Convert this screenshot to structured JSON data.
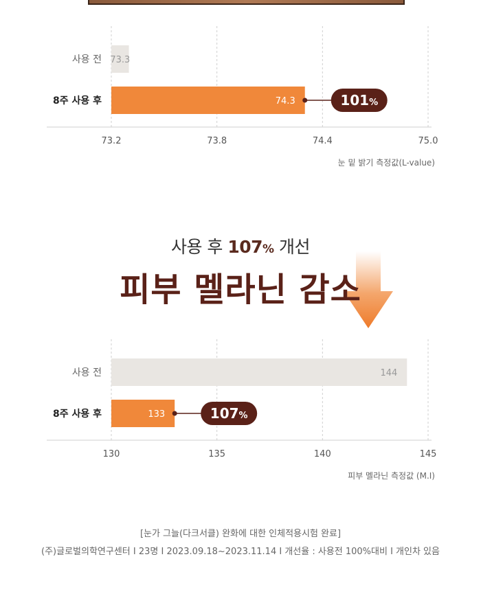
{
  "chart_data": [
    {
      "type": "bar",
      "orientation": "horizontal",
      "categories": [
        "사용 전",
        "8주 사용 후"
      ],
      "values": [
        73.3,
        74.3
      ],
      "value_labels": [
        "73.3",
        "74.3"
      ],
      "xlim": [
        73.2,
        75.0
      ],
      "xticks": [
        "73.2",
        "73.8",
        "74.4",
        "75.0"
      ],
      "xlabel": "눈 밑 밝기 측정값(L-value)",
      "grid": "vertical-dashed",
      "badge": {
        "number": "101",
        "percent": "%"
      },
      "colors": {
        "before": "#e9e6e2",
        "after": "#f0883a",
        "badge": "#5a2118"
      }
    },
    {
      "type": "bar",
      "orientation": "horizontal",
      "categories": [
        "사용 전",
        "8주 사용 후"
      ],
      "values": [
        144,
        133
      ],
      "value_labels": [
        "144",
        "133"
      ],
      "xlim": [
        130,
        145
      ],
      "xticks": [
        "130",
        "135",
        "140",
        "145"
      ],
      "xlabel": "피부 멜라닌 측정값 (M.I)",
      "grid": "vertical-dashed",
      "badge": {
        "number": "107",
        "percent": "%"
      },
      "colors": {
        "before": "#e9e6e2",
        "after": "#f0883a",
        "badge": "#5a2118"
      }
    }
  ],
  "headline": {
    "sub_prefix": "사용 후 ",
    "sub_number": "107",
    "sub_percent": "%",
    "sub_suffix": " 개선",
    "main": "피부 멜라닌 감소"
  },
  "footer": {
    "line1": "[눈가 그늘(다크서클) 완화에 대한 인체적용시험 완료]",
    "line2": "(주)글로벌의학연구센터 I 23명 I 2023.09.18~2023.11.14 I 개선율 : 사용전 100%대비 I 개인차 있음"
  },
  "icons": {
    "arrow": "down-arrow-icon"
  }
}
